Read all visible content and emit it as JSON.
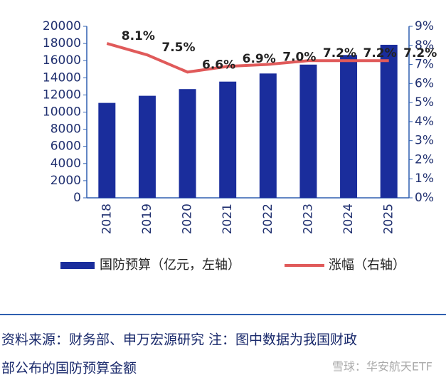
{
  "chart_data": {
    "type": "bar_line",
    "categories": [
      "2018",
      "2019",
      "2020",
      "2021",
      "2022",
      "2023",
      "2024",
      "2025"
    ],
    "series": [
      {
        "name": "国防预算（亿元，左轴）",
        "color": "#1a2d9c",
        "type": "bar",
        "values": [
          11070,
          11900,
          12680,
          13553,
          14500,
          15537,
          16655,
          17847
        ]
      },
      {
        "name": "涨幅（右轴）",
        "color": "#e05a5a",
        "type": "line",
        "axis": "y2",
        "values": [
          8.1,
          7.5,
          6.6,
          6.9,
          7.0,
          7.2,
          7.2,
          7.2
        ],
        "value_labels": [
          "8.1%",
          "7.5%",
          "6.6%",
          "6.9%",
          "7.0%",
          "7.2%",
          "7.2%",
          "7.2%"
        ]
      }
    ],
    "ylim": [
      0,
      20000
    ],
    "yticks": [
      0,
      2000,
      4000,
      6000,
      8000,
      10000,
      12000,
      14000,
      16000,
      18000,
      20000
    ],
    "y2lim": [
      0,
      9
    ],
    "y2ticks": [
      {
        "value": 0,
        "label": "0%"
      },
      {
        "value": 1,
        "label": "1%"
      },
      {
        "value": 2,
        "label": "2%"
      },
      {
        "value": 3,
        "label": "3%"
      },
      {
        "value": 4,
        "label": "4%"
      },
      {
        "value": 5,
        "label": "5%"
      },
      {
        "value": 6,
        "label": "6%"
      },
      {
        "value": 7,
        "label": "7%"
      },
      {
        "value": 8,
        "label": "8%"
      },
      {
        "value": 9,
        "label": "9%"
      }
    ],
    "legend": "bottom",
    "source_lines": [
      "资料来源：财务部、申万宏源研究 注：图中数据为我国财政",
      "部公布的国防预算金额"
    ],
    "watermark": "雪球：华安航天ETF"
  }
}
